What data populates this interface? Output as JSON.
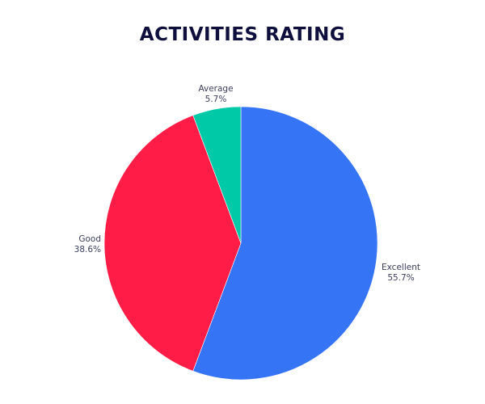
{
  "title": "ACTIVITIES RATING",
  "chart_data": {
    "type": "pie",
    "title": "ACTIVITIES RATING",
    "categories": [
      "Excellent",
      "Good",
      "Average"
    ],
    "values": [
      55.7,
      38.6,
      5.7
    ],
    "unit": "%",
    "colors": [
      "#3574f5",
      "#ff1d48",
      "#00c9a7"
    ],
    "start_angle": "12 o'clock",
    "direction": "clockwise",
    "labels": [
      {
        "name": "Excellent",
        "value": "55.7%"
      },
      {
        "name": "Good",
        "value": "38.6%"
      },
      {
        "name": "Average",
        "value": "5.7%"
      }
    ],
    "legend": "none (labels outside slices)"
  }
}
